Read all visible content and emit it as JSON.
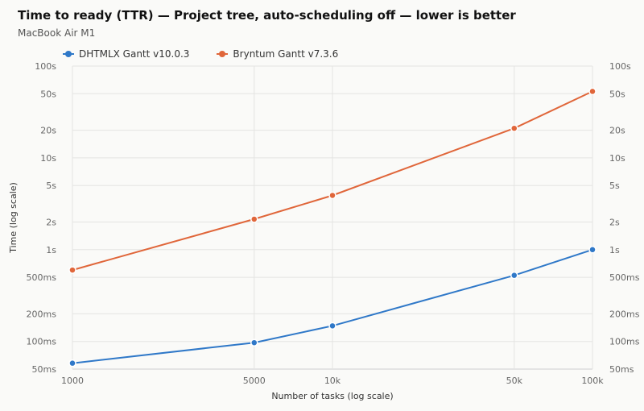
{
  "title": "Time to ready (TTR) — Project tree, auto-scheduling off — lower is better",
  "subtitle": "MacBook Air M1",
  "chart_data": {
    "type": "line",
    "title": "Time to ready (TTR) — Project tree, auto-scheduling off — lower is better",
    "subtitle": "MacBook Air M1",
    "xlabel": "Number of tasks (log scale)",
    "ylabel": "Time (log scale)",
    "x_scale": "log",
    "y_scale": "log",
    "x": [
      1000,
      5000,
      10000,
      50000,
      100000
    ],
    "x_tick_labels": [
      "1000",
      "5000",
      "10k",
      "50k",
      "100k"
    ],
    "xlim": [
      1000,
      100000
    ],
    "ylim_ms": [
      50,
      100000
    ],
    "y_ticks_ms": [
      50,
      100,
      200,
      500,
      1000,
      2000,
      5000,
      10000,
      20000,
      50000,
      100000
    ],
    "y_tick_labels": [
      "50ms",
      "100ms",
      "200ms",
      "500ms",
      "1s",
      "2s",
      "5s",
      "10s",
      "20s",
      "50s",
      "100s"
    ],
    "y_axes": "left and right",
    "grid": true,
    "legend_position": "top-left",
    "series": [
      {
        "name": "DHTMLX Gantt v10.0.3",
        "color": "#2f78c8",
        "values_ms": [
          58,
          97,
          148,
          525,
          1000
        ]
      },
      {
        "name": "Bryntum Gantt v7.3.6",
        "color": "#e0663a",
        "values_ms": [
          600,
          2150,
          3900,
          21000,
          53000
        ]
      }
    ]
  }
}
